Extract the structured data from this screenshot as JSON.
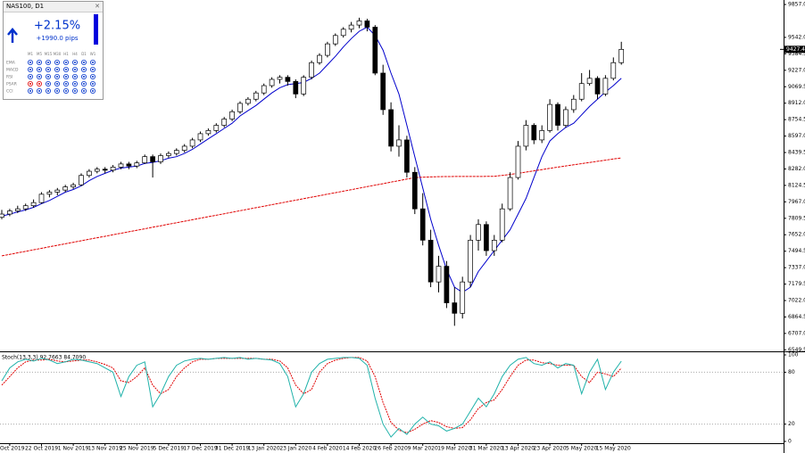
{
  "panel": {
    "title": "NAS100, D1",
    "change": "+2.15%",
    "pips": "+1990.0 pips",
    "columns": [
      "M1",
      "M5",
      "M15",
      "M30",
      "H1",
      "H4",
      "D1",
      "W1"
    ],
    "rows": [
      "EMA",
      "MACD",
      "RSI",
      "PSAR",
      "CCI"
    ]
  },
  "chart_data": {
    "type": "candlestick",
    "categories": [
      null,
      "8 Oct 2019",
      null,
      null,
      null,
      "22 Oct 2019",
      null,
      null,
      null,
      "1 Nov 2019",
      null,
      null,
      null,
      "13 Nov 2019",
      null,
      null,
      null,
      "25 Nov 2019",
      null,
      null,
      null,
      "5 Dec 2019",
      null,
      null,
      null,
      "17 Dec 2019",
      null,
      null,
      null,
      "31 Dec 2019",
      null,
      null,
      null,
      "13 Jan 2020",
      null,
      null,
      null,
      "23 Jan 2020",
      null,
      null,
      null,
      "4 Feb 2020",
      null,
      null,
      null,
      "14 Feb 2020",
      null,
      null,
      null,
      "26 Feb 2020",
      null,
      null,
      null,
      "9 Mar 2020",
      null,
      null,
      null,
      "19 Mar 2020",
      null,
      null,
      null,
      "31 Mar 2020",
      null,
      null,
      null,
      "13 Apr 2020",
      null,
      null,
      null,
      "23 Apr 2020",
      null,
      null,
      null,
      "5 May 2020",
      null,
      null,
      null,
      "15 May 2020",
      null,
      null
    ],
    "candles": [
      [
        7820,
        7890,
        7800,
        7850
      ],
      [
        7850,
        7900,
        7830,
        7880
      ],
      [
        7880,
        7930,
        7860,
        7900
      ],
      [
        7900,
        7950,
        7880,
        7930
      ],
      [
        7930,
        7990,
        7910,
        7960
      ],
      [
        7960,
        8060,
        7950,
        8040
      ],
      [
        8040,
        8080,
        8010,
        8060
      ],
      [
        8060,
        8100,
        8030,
        8080
      ],
      [
        8080,
        8130,
        8060,
        8110
      ],
      [
        8110,
        8150,
        8090,
        8130
      ],
      [
        8130,
        8240,
        8120,
        8220
      ],
      [
        8220,
        8280,
        8200,
        8260
      ],
      [
        8260,
        8300,
        8240,
        8280
      ],
      [
        8280,
        8300,
        8240,
        8270
      ],
      [
        8270,
        8320,
        8250,
        8300
      ],
      [
        8300,
        8350,
        8280,
        8330
      ],
      [
        8330,
        8350,
        8280,
        8310
      ],
      [
        8310,
        8360,
        8290,
        8340
      ],
      [
        8340,
        8420,
        8330,
        8400
      ],
      [
        8400,
        8420,
        8200,
        8350
      ],
      [
        8350,
        8430,
        8330,
        8410
      ],
      [
        8410,
        8450,
        8390,
        8430
      ],
      [
        8430,
        8480,
        8410,
        8460
      ],
      [
        8460,
        8520,
        8440,
        8500
      ],
      [
        8500,
        8580,
        8480,
        8560
      ],
      [
        8560,
        8640,
        8540,
        8620
      ],
      [
        8620,
        8670,
        8600,
        8650
      ],
      [
        8650,
        8720,
        8630,
        8700
      ],
      [
        8700,
        8780,
        8680,
        8760
      ],
      [
        8760,
        8850,
        8740,
        8830
      ],
      [
        8830,
        8930,
        8810,
        8910
      ],
      [
        8910,
        8970,
        8890,
        8950
      ],
      [
        8950,
        9030,
        8930,
        9010
      ],
      [
        9010,
        9100,
        8990,
        9080
      ],
      [
        9080,
        9160,
        9060,
        9140
      ],
      [
        9140,
        9180,
        9100,
        9160
      ],
      [
        9160,
        9180,
        9080,
        9120
      ],
      [
        9120,
        9140,
        8960,
        9000
      ],
      [
        9000,
        9180,
        8980,
        9160
      ],
      [
        9160,
        9320,
        9140,
        9300
      ],
      [
        9300,
        9390,
        9280,
        9370
      ],
      [
        9370,
        9500,
        9350,
        9480
      ],
      [
        9480,
        9580,
        9460,
        9560
      ],
      [
        9560,
        9640,
        9540,
        9620
      ],
      [
        9620,
        9690,
        9590,
        9660
      ],
      [
        9660,
        9730,
        9630,
        9700
      ],
      [
        9700,
        9720,
        9600,
        9640
      ],
      [
        9640,
        9660,
        9180,
        9200
      ],
      [
        9200,
        9280,
        8800,
        8850
      ],
      [
        8850,
        8920,
        8450,
        8500
      ],
      [
        8500,
        8700,
        8400,
        8560
      ],
      [
        8560,
        8600,
        8200,
        8250
      ],
      [
        8250,
        8300,
        7850,
        7900
      ],
      [
        7900,
        8050,
        7550,
        7600
      ],
      [
        7600,
        7700,
        7150,
        7200
      ],
      [
        7200,
        7450,
        7100,
        7350
      ],
      [
        7350,
        7400,
        6950,
        7000
      ],
      [
        7000,
        7150,
        6780,
        6900
      ],
      [
        6900,
        7250,
        6850,
        7200
      ],
      [
        7200,
        7650,
        7150,
        7600
      ],
      [
        7600,
        7800,
        7500,
        7750
      ],
      [
        7750,
        7780,
        7450,
        7500
      ],
      [
        7500,
        7650,
        7450,
        7600
      ],
      [
        7600,
        7950,
        7580,
        7900
      ],
      [
        7900,
        8250,
        7880,
        8200
      ],
      [
        8200,
        8550,
        8180,
        8500
      ],
      [
        8500,
        8750,
        8460,
        8700
      ],
      [
        8700,
        8720,
        8520,
        8560
      ],
      [
        8560,
        8700,
        8530,
        8650
      ],
      [
        8650,
        8950,
        8630,
        8900
      ],
      [
        8900,
        8920,
        8650,
        8700
      ],
      [
        8700,
        8880,
        8680,
        8850
      ],
      [
        8850,
        8990,
        8820,
        8950
      ],
      [
        8950,
        9200,
        8930,
        9100
      ],
      [
        9100,
        9230,
        9080,
        9150
      ],
      [
        9150,
        9170,
        8950,
        9000
      ],
      [
        9000,
        9180,
        8980,
        9150
      ],
      [
        9150,
        9350,
        9130,
        9300
      ],
      [
        9300,
        9500,
        9280,
        9427.4
      ]
    ],
    "lines": [
      {
        "color": "#0000cc",
        "values": [
          7830,
          7850,
          7870,
          7890,
          7915,
          7950,
          7980,
          8020,
          8060,
          8085,
          8120,
          8170,
          8210,
          8240,
          8270,
          8290,
          8300,
          8310,
          8335,
          8345,
          8360,
          8385,
          8400,
          8430,
          8470,
          8520,
          8570,
          8620,
          8670,
          8720,
          8790,
          8840,
          8890,
          8950,
          9010,
          9060,
          9090,
          9100,
          9110,
          9150,
          9200,
          9280,
          9360,
          9450,
          9530,
          9600,
          9640,
          9560,
          9420,
          9200,
          9000,
          8700,
          8400,
          8100,
          7800,
          7550,
          7320,
          7150,
          7100,
          7150,
          7300,
          7400,
          7500,
          7600,
          7700,
          7850,
          8000,
          8200,
          8400,
          8550,
          8620,
          8680,
          8720,
          8800,
          8880,
          8950,
          9020,
          9080,
          9150
        ]
      },
      {
        "color": "#e00000",
        "values": [
          7450,
          7464,
          7479,
          7493,
          7508,
          7522,
          7537,
          7551,
          7565,
          7580,
          7594,
          7609,
          7623,
          7637,
          7652,
          7666,
          7681,
          7695,
          7709,
          7724,
          7738,
          7753,
          7767,
          7781,
          7796,
          7810,
          7825,
          7839,
          7853,
          7868,
          7882,
          7897,
          7911,
          7925,
          7940,
          7954,
          7969,
          7983,
          7997,
          8012,
          8026,
          8041,
          8055,
          8069,
          8084,
          8098,
          8113,
          8127,
          8141,
          8156,
          8170,
          8185,
          8199,
          8203,
          8206,
          8208,
          8209,
          8210,
          8210,
          8210,
          8210,
          8211,
          8212,
          8220,
          8230,
          8240,
          8252,
          8264,
          8276,
          8288,
          8300,
          8311,
          8322,
          8333,
          8344,
          8355,
          8366,
          8377,
          8388
        ]
      }
    ],
    "ylim": [
      6544,
      9900
    ],
    "yticks": [
      {
        "value": 9857,
        "label": "9857.0"
      },
      {
        "value": 9542,
        "label": "9542.0"
      },
      {
        "value": 9384.5,
        "label": "9384.5"
      },
      {
        "value": 9227,
        "label": "9227.0"
      },
      {
        "value": 9069.5,
        "label": "9069.5"
      },
      {
        "value": 8912,
        "label": "8912.0"
      },
      {
        "value": 8754.5,
        "label": "8754.5"
      },
      {
        "value": 8597,
        "label": "8597.0"
      },
      {
        "value": 8439.5,
        "label": "8439.5"
      },
      {
        "value": 8282,
        "label": "8282.0"
      },
      {
        "value": 8124.5,
        "label": "8124.5"
      },
      {
        "value": 7967,
        "label": "7967.0"
      },
      {
        "value": 7809.5,
        "label": "7809.5"
      },
      {
        "value": 7652,
        "label": "7652.0"
      },
      {
        "value": 7494.5,
        "label": "7494.5"
      },
      {
        "value": 7337,
        "label": "7337.0"
      },
      {
        "value": 7179.5,
        "label": "7179.5"
      },
      {
        "value": 7022,
        "label": "7022.0"
      },
      {
        "value": 6864.5,
        "label": "6864.5"
      },
      {
        "value": 6707,
        "label": "6707.0"
      },
      {
        "value": 6549.5,
        "label": "6549.5"
      }
    ],
    "oscillator": {
      "label": "Stoch(13,3,3) 92.7663 84.7090",
      "ylim": [
        0,
        100
      ],
      "yticks": [
        0,
        20,
        80,
        100
      ],
      "main": {
        "color": "#20b2aa",
        "values": [
          70,
          85,
          92,
          95,
          93,
          96,
          94,
          90,
          92,
          95,
          94,
          92,
          90,
          85,
          80,
          52,
          75,
          88,
          92,
          40,
          55,
          75,
          88,
          93,
          95,
          96,
          95,
          96,
          97,
          96,
          97,
          95,
          96,
          95,
          94,
          90,
          75,
          40,
          55,
          80,
          90,
          95,
          96,
          97,
          97,
          96,
          88,
          50,
          20,
          5,
          15,
          8,
          20,
          28,
          20,
          18,
          12,
          15,
          20,
          35,
          50,
          40,
          55,
          75,
          88,
          95,
          97,
          90,
          88,
          92,
          85,
          90,
          88,
          55,
          80,
          95,
          60,
          80,
          92.77
        ]
      },
      "signal": {
        "color": "#e00000",
        "values": [
          65,
          75,
          85,
          92,
          94,
          94,
          95,
          93,
          92,
          93,
          94,
          94,
          92,
          89,
          85,
          70,
          68,
          75,
          85,
          65,
          55,
          60,
          75,
          85,
          92,
          95,
          95,
          96,
          96,
          96,
          96,
          96,
          96,
          95,
          95,
          93,
          85,
          65,
          55,
          60,
          80,
          90,
          94,
          96,
          97,
          97,
          93,
          75,
          45,
          22,
          13,
          10,
          14,
          20,
          24,
          22,
          17,
          15,
          16,
          25,
          38,
          45,
          48,
          60,
          75,
          88,
          94,
          94,
          91,
          90,
          88,
          88,
          88,
          75,
          68,
          80,
          78,
          75,
          84.71
        ]
      }
    }
  }
}
